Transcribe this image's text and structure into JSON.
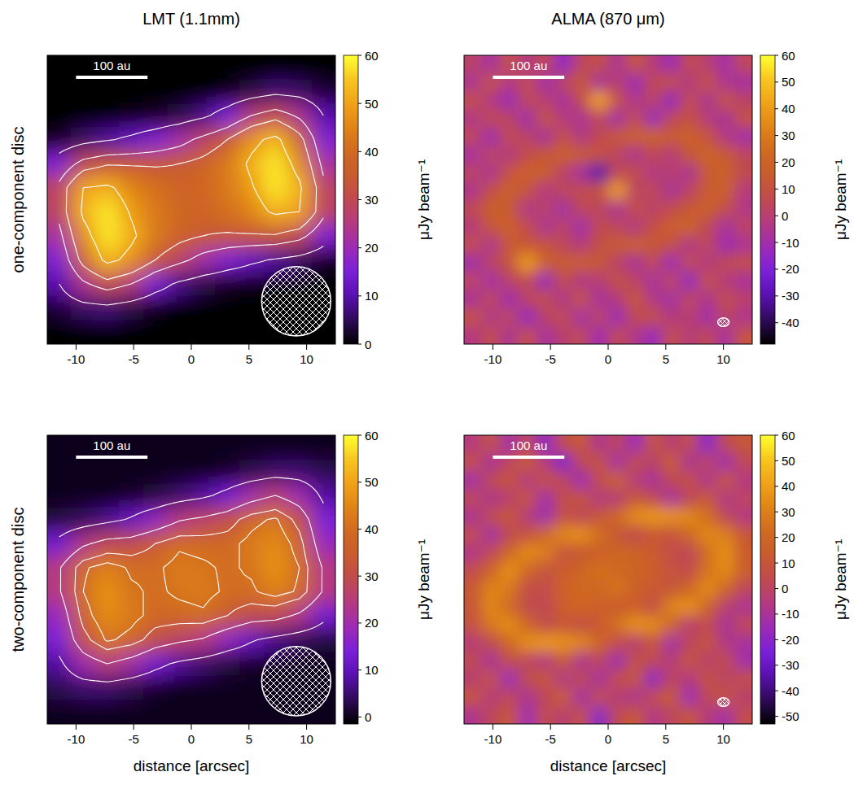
{
  "chart_data": [
    {
      "type": "heatmap",
      "title": "LMT (1.1mm)",
      "ylabel": "one-component disc",
      "xlim": [
        -12.5,
        12.5
      ],
      "ylim": [
        -12.5,
        12.5
      ],
      "xticks": [
        -10,
        -5,
        0,
        5,
        10
      ],
      "tick_labels": "x",
      "cells": [
        [
          0,
          0,
          0,
          0,
          0,
          0,
          0,
          0,
          0,
          0,
          0,
          0
        ],
        [
          0,
          0,
          0,
          0,
          0,
          0,
          0,
          1,
          4,
          7,
          6,
          3
        ],
        [
          0,
          0,
          0,
          1,
          2,
          4,
          8,
          15,
          25,
          31,
          23,
          10
        ],
        [
          2,
          6,
          9,
          12,
          16,
          21,
          28,
          35,
          47,
          53,
          39,
          16
        ],
        [
          16,
          29,
          34,
          34,
          34,
          35,
          38,
          43,
          52,
          58,
          46,
          22
        ],
        [
          28,
          50,
          52,
          45,
          41,
          38,
          39,
          43,
          49,
          58,
          52,
          28
        ],
        [
          28,
          52,
          58,
          49,
          43,
          39,
          38,
          41,
          45,
          52,
          50,
          28
        ],
        [
          22,
          46,
          58,
          52,
          43,
          38,
          35,
          34,
          34,
          34,
          29,
          16
        ],
        [
          16,
          39,
          53,
          47,
          35,
          28,
          21,
          16,
          12,
          9,
          6,
          2
        ],
        [
          10,
          23,
          31,
          25,
          15,
          8,
          4,
          2,
          1,
          0,
          0,
          0
        ],
        [
          3,
          6,
          7,
          4,
          1,
          0,
          0,
          0,
          0,
          0,
          0,
          0
        ],
        [
          0,
          0,
          0,
          0,
          0,
          0,
          0,
          0,
          0,
          0,
          0,
          0
        ]
      ],
      "contours": [
        10,
        25,
        35,
        50
      ],
      "colorbar": {
        "label": "μJy beam⁻¹",
        "lim": [
          0,
          60
        ],
        "ticks": [
          0,
          10,
          20,
          30,
          40,
          50,
          60
        ]
      },
      "beam": {
        "major": 6,
        "minor": 6
      },
      "scale_bar": {
        "label": "100 au",
        "length": 6.2
      }
    },
    {
      "type": "heatmap",
      "title": "ALMA (870 μm)",
      "xlim": [
        -12.5,
        12.5
      ],
      "ylim": [
        -12.5,
        12.5
      ],
      "xticks": [
        -10,
        -5,
        0,
        5,
        10
      ],
      "tick_labels": "x",
      "cells": [
        [
          2,
          -8,
          10,
          -3,
          6,
          -15,
          4,
          9,
          -6,
          13,
          -2,
          -11,
          7,
          0,
          -9,
          5
        ],
        [
          -6,
          12,
          -4,
          8,
          -10,
          3,
          14,
          -7,
          1,
          -12,
          6,
          9,
          -3,
          11,
          -5,
          -8
        ],
        [
          9,
          -3,
          -12,
          5,
          1,
          -8,
          7,
          42,
          10,
          -5,
          3,
          -14,
          8,
          -6,
          12,
          2
        ],
        [
          -4,
          7,
          3,
          -10,
          12,
          -2,
          -6,
          4,
          -9,
          8,
          -13,
          5,
          10,
          -1,
          -7,
          11
        ],
        [
          5,
          -11,
          8,
          2,
          -7,
          10,
          -4,
          6,
          14,
          18,
          20,
          16,
          19,
          12,
          -3,
          -9
        ],
        [
          -8,
          4,
          -3,
          9,
          13,
          18,
          16,
          11,
          3,
          -5,
          6,
          -2,
          14,
          20,
          15,
          4
        ],
        [
          3,
          -6,
          12,
          19,
          17,
          2,
          -8,
          -30,
          5,
          8,
          -4,
          1,
          -6,
          15,
          18,
          7
        ],
        [
          -5,
          10,
          18,
          12,
          -3,
          4,
          7,
          10,
          40,
          2,
          6,
          -7,
          3,
          16,
          19,
          -2
        ],
        [
          6,
          17,
          15,
          -4,
          2,
          -9,
          5,
          3,
          -6,
          9,
          1,
          8,
          14,
          18,
          9,
          -4
        ],
        [
          -2,
          14,
          19,
          8,
          -6,
          3,
          -10,
          7,
          4,
          -3,
          10,
          17,
          20,
          6,
          -8,
          3
        ],
        [
          8,
          -5,
          16,
          13,
          12,
          4,
          -2,
          9,
          15,
          18,
          13,
          10,
          -4,
          5,
          -11,
          -6
        ],
        [
          -10,
          3,
          11,
          40,
          18,
          15,
          17,
          14,
          2,
          -7,
          5,
          -12,
          8,
          -3,
          6,
          9
        ],
        [
          4,
          -9,
          2,
          7,
          -13,
          8,
          -4,
          -1,
          10,
          3,
          -8,
          6,
          -15,
          11,
          -2,
          -7
        ],
        [
          -7,
          6,
          -11,
          3,
          9,
          -5,
          12,
          -8,
          -2,
          14,
          -4,
          -9,
          5,
          -6,
          8,
          1
        ],
        [
          11,
          -4,
          5,
          -14,
          2,
          7,
          -9,
          4,
          -12,
          6,
          10,
          -3,
          1,
          -10,
          3,
          -5
        ],
        [
          -3,
          8,
          -6,
          10,
          -8,
          1,
          5,
          -11,
          7,
          -4,
          -13,
          9,
          -2,
          6,
          -8,
          12
        ]
      ],
      "colorbar": {
        "label": "μJy beam⁻¹",
        "lim": [
          -48,
          60
        ],
        "ticks": [
          -40,
          -30,
          -20,
          -10,
          0,
          10,
          20,
          30,
          40,
          50,
          60
        ]
      },
      "beam": {
        "major": 1.0,
        "minor": 0.75
      },
      "scale_bar": {
        "label": "100 au",
        "length": 6.2
      }
    },
    {
      "type": "heatmap",
      "ylabel": "two-component disc",
      "xlabel": "distance [arcsec]",
      "xlim": [
        -12.5,
        12.5
      ],
      "ylim": [
        -12.5,
        12.5
      ],
      "xticks": [
        -10,
        -5,
        0,
        5,
        10
      ],
      "tick_labels": "x",
      "cells": [
        [
          0,
          0,
          0,
          0,
          0,
          0,
          0,
          0,
          0,
          0,
          0,
          0
        ],
        [
          0,
          0,
          0,
          0,
          0,
          0,
          0,
          1,
          3,
          5,
          5,
          3
        ],
        [
          0,
          0,
          0,
          1,
          2,
          5,
          8,
          13,
          20,
          25,
          19,
          8
        ],
        [
          2,
          4,
          7,
          11,
          17,
          24,
          27,
          31,
          39,
          42,
          32,
          14
        ],
        [
          13,
          23,
          29,
          30,
          35,
          40,
          39,
          39,
          43,
          46,
          38,
          18
        ],
        [
          24,
          40,
          44,
          40,
          40,
          43,
          42,
          40,
          42,
          47,
          41,
          24
        ],
        [
          24,
          41,
          47,
          42,
          40,
          42,
          43,
          40,
          40,
          44,
          40,
          24
        ],
        [
          18,
          38,
          46,
          43,
          39,
          39,
          40,
          35,
          30,
          29,
          23,
          13
        ],
        [
          14,
          32,
          42,
          39,
          31,
          27,
          24,
          17,
          11,
          7,
          4,
          2
        ],
        [
          8,
          19,
          25,
          20,
          13,
          8,
          5,
          2,
          1,
          0,
          0,
          0
        ],
        [
          3,
          5,
          5,
          3,
          1,
          0,
          0,
          0,
          0,
          0,
          0,
          0
        ],
        [
          0,
          0,
          0,
          0,
          0,
          0,
          0,
          0,
          0,
          0,
          0,
          0
        ]
      ],
      "contours": [
        10,
        25,
        35,
        41
      ],
      "colorbar": {
        "label": "μJy beam⁻¹",
        "lim": [
          -1.5,
          60
        ],
        "ticks": [
          0,
          10,
          20,
          30,
          40,
          50,
          60
        ]
      },
      "beam": {
        "major": 6,
        "minor": 6
      },
      "scale_bar": {
        "label": "100 au",
        "length": 6.2
      }
    },
    {
      "type": "heatmap",
      "xlabel": "distance [arcsec]",
      "xlim": [
        -12.5,
        12.5
      ],
      "ylim": [
        -12.5,
        12.5
      ],
      "xticks": [
        -10,
        -5,
        0,
        5,
        10
      ],
      "tick_labels": "x",
      "cells": [
        [
          -5,
          8,
          -12,
          3,
          -18,
          6,
          12,
          -8,
          2,
          -15,
          9,
          -3,
          5,
          -20,
          4,
          10
        ],
        [
          7,
          -10,
          2,
          14,
          -4,
          -22,
          3,
          9,
          -12,
          6,
          -2,
          15,
          -9,
          1,
          -14,
          3
        ],
        [
          -12,
          4,
          10,
          -6,
          8,
          2,
          -15,
          5,
          18,
          -4,
          -10,
          3,
          7,
          -8,
          12,
          -6
        ],
        [
          3,
          -8,
          -2,
          11,
          -13,
          6,
          9,
          -5,
          -3,
          12,
          4,
          -11,
          2,
          14,
          -7,
          1
        ],
        [
          -9,
          5,
          12,
          -4,
          -14,
          8,
          2,
          10,
          22,
          34,
          38,
          36,
          33,
          24,
          3,
          -6
        ],
        [
          6,
          -12,
          4,
          8,
          22,
          33,
          35,
          24,
          10,
          4,
          12,
          8,
          22,
          33,
          30,
          12
        ],
        [
          -7,
          3,
          20,
          34,
          30,
          9,
          12,
          16,
          20,
          18,
          14,
          6,
          2,
          24,
          36,
          14
        ],
        [
          5,
          18,
          36,
          22,
          8,
          14,
          20,
          24,
          22,
          18,
          16,
          8,
          4,
          26,
          34,
          15
        ],
        [
          12,
          32,
          28,
          6,
          5,
          18,
          21,
          20,
          26,
          17,
          12,
          10,
          20,
          34,
          20,
          2
        ],
        [
          10,
          33,
          22,
          5,
          3,
          15,
          20,
          17,
          14,
          15,
          6,
          32,
          36,
          18,
          -2,
          -9
        ],
        [
          8,
          28,
          35,
          20,
          5,
          10,
          7,
          12,
          25,
          36,
          34,
          20,
          -3,
          6,
          -10,
          4
        ],
        [
          -4,
          5,
          22,
          35,
          38,
          36,
          32,
          20,
          6,
          -3,
          11,
          -12,
          2,
          9,
          -6,
          -11
        ],
        [
          4,
          -10,
          7,
          1,
          -6,
          13,
          -9,
          2,
          -14,
          8,
          3,
          -5,
          11,
          -2,
          6,
          -13
        ],
        [
          -3,
          9,
          -16,
          5,
          12,
          -7,
          4,
          -11,
          6,
          10,
          -19,
          2,
          -6,
          8,
          -1,
          7
        ],
        [
          10,
          -5,
          3,
          -9,
          2,
          15,
          -12,
          7,
          -4,
          -8,
          5,
          13,
          -15,
          3,
          9,
          -2
        ],
        [
          -8,
          2,
          11,
          -14,
          6,
          -3,
          8,
          -20,
          4,
          12,
          -7,
          1,
          10,
          -5,
          -12,
          6
        ]
      ],
      "colorbar": {
        "label": "μJy beam⁻¹",
        "lim": [
          -53,
          60
        ],
        "ticks": [
          -50,
          -40,
          -30,
          -20,
          -10,
          0,
          10,
          20,
          30,
          40,
          50,
          60
        ]
      },
      "beam": {
        "major": 1.0,
        "minor": 0.75
      },
      "scale_bar": {
        "label": "100 au",
        "length": 6.2
      }
    }
  ]
}
